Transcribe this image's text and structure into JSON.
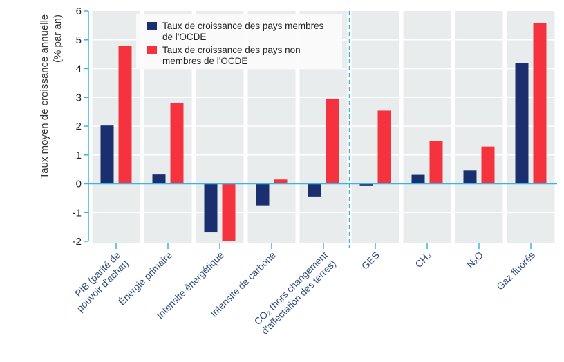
{
  "chart_data": {
    "type": "bar",
    "title": "",
    "xlabel": "",
    "ylabel": [
      "Taux moyen de croissance annuelle",
      "(% par an)"
    ],
    "ylim": [
      -2,
      6
    ],
    "yticks": [
      -2,
      -1,
      0,
      1,
      2,
      3,
      4,
      5,
      6
    ],
    "grid": true,
    "legend_position": "top-left",
    "categories": [
      [
        "PIB (parité de",
        "pouvoir d'achat)"
      ],
      [
        "Énergie primaire"
      ],
      [
        "Intensité énergétique"
      ],
      [
        "Intensité de carbone"
      ],
      [
        "CO₂ (hors changement",
        "d'affectation des terres)"
      ],
      [
        "GES"
      ],
      [
        "CH₄"
      ],
      [
        "N₂O"
      ],
      [
        "Gaz fluorés"
      ]
    ],
    "separator_after_category_index": 4,
    "series": [
      {
        "name": "Taux de croissance des pays membres de l'OCDE",
        "legend_lines": [
          "Taux de croissance des pays membres",
          "de l'OCDE"
        ],
        "color": "#1b2f6e",
        "values": [
          2.02,
          0.32,
          -1.69,
          -0.77,
          -0.44,
          -0.08,
          0.31,
          0.46,
          4.18
        ]
      },
      {
        "name": "Taux de croissance des pays non membres de l'OCDE",
        "legend_lines": [
          "Taux de croissance des pays non",
          "membres de l'OCDE"
        ],
        "color": "#f5333f",
        "values": [
          4.79,
          2.8,
          -1.98,
          0.15,
          2.96,
          2.54,
          1.49,
          1.29,
          5.59
        ]
      }
    ]
  },
  "colors": {
    "axis": "#3ab4e6",
    "panel": "#e8ecec",
    "gridline": "#ffffff"
  }
}
